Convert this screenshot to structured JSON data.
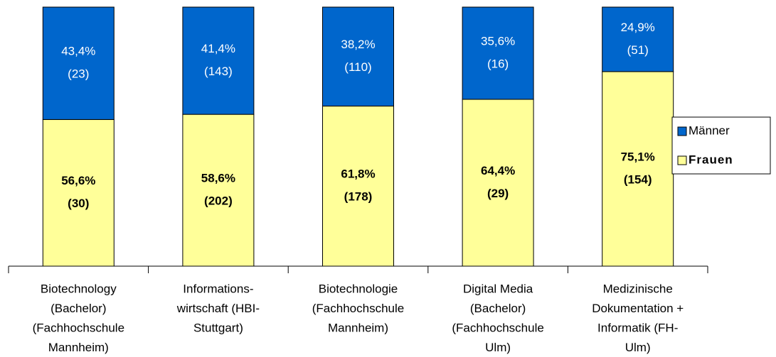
{
  "chart_data": {
    "type": "stacked_bar_100",
    "categories": [
      [
        "Biotechnology",
        "(Bachelor)",
        "(Fachhochschule",
        "Mannheim)"
      ],
      [
        "Informations-",
        "wirtschaft (HBI-",
        "Stuttgart)"
      ],
      [
        "Biotechnologie",
        "(Fachhochschule",
        "Mannheim)"
      ],
      [
        "Digital Media",
        "(Bachelor)",
        "(Fachhochschule",
        "Ulm)"
      ],
      [
        "Medizinische",
        "Dokumentation +",
        "Informatik (FH-",
        "Ulm)"
      ]
    ],
    "ylim": [
      0,
      100
    ],
    "legend": "right",
    "series": [
      {
        "name": "Frauen",
        "color": "#ffff99",
        "label_color": "#000000",
        "bold": true,
        "values": [
          56.6,
          58.6,
          61.8,
          64.4,
          75.1
        ],
        "value_labels": [
          "56,6%",
          "58,6%",
          "61,8%",
          "64,4%",
          "75,1%"
        ],
        "counts": [
          30,
          202,
          178,
          29,
          154
        ],
        "count_labels": [
          "(30)",
          "(202)",
          "(178)",
          "(29)",
          "(154)"
        ]
      },
      {
        "name": "Männer",
        "color": "#0066cc",
        "label_color": "#ffffff",
        "bold": false,
        "values": [
          43.4,
          41.4,
          38.2,
          35.6,
          24.9
        ],
        "value_labels": [
          "43,4%",
          "41,4%",
          "38,2%",
          "35,6%",
          "24,9%"
        ],
        "counts": [
          23,
          143,
          110,
          16,
          51
        ],
        "count_labels": [
          "(23)",
          "(143)",
          "(110)",
          "(16)",
          "(51)"
        ]
      }
    ]
  }
}
